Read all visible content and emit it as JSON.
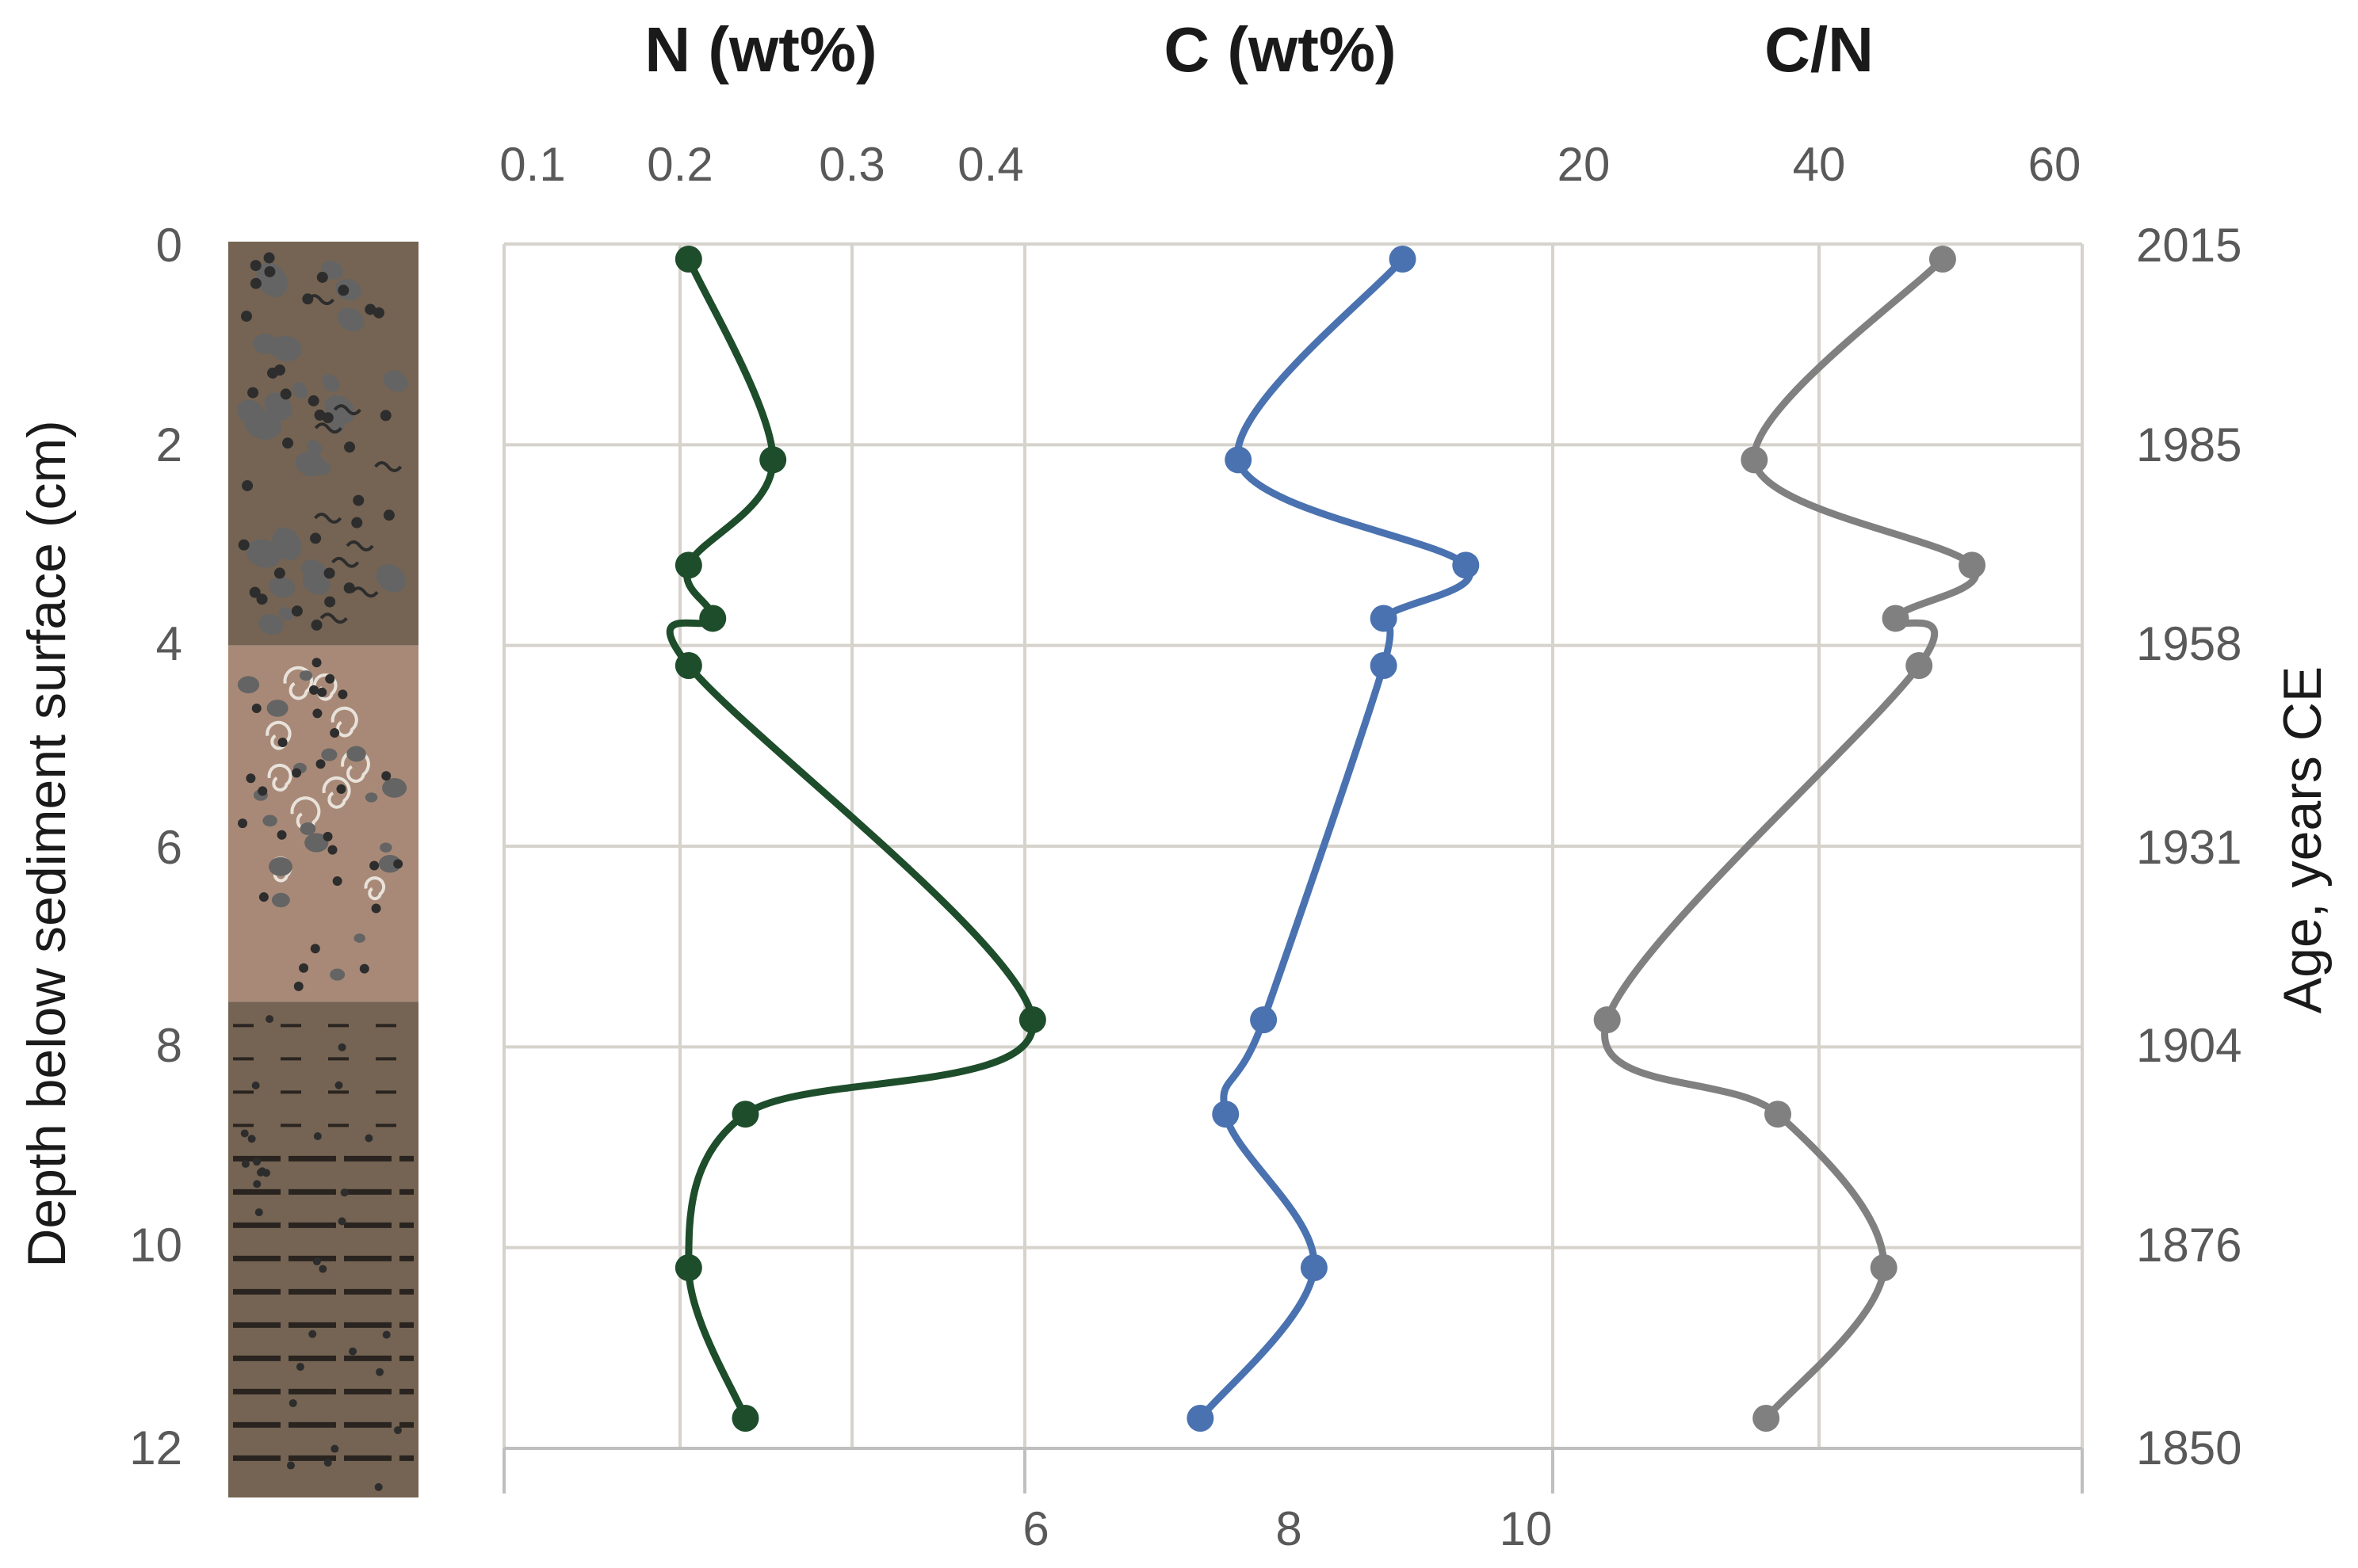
{
  "chart_data": [
    {
      "type": "line",
      "title": "N (wt%)",
      "series": [
        {
          "name": "",
          "color": "#1e4d2b",
          "x": [
            0.205,
            0.254,
            0.205,
            0.219,
            0.205,
            0.405,
            0.238,
            0.205,
            0.238
          ],
          "y": [
            0.15,
            2.15,
            3.2,
            3.73,
            4.2,
            7.73,
            8.67,
            10.2,
            11.7
          ]
        }
      ],
      "xticks": [
        "0.1",
        "0.2",
        "0.3",
        "0.4"
      ],
      "ylabel": "Depth below sediment surface (cm)",
      "yticks": [
        "0",
        "2",
        "4",
        "6",
        "8",
        "10",
        "12"
      ],
      "ylim": [
        0,
        12
      ],
      "grid": true
    },
    {
      "type": "line",
      "title": "C (wt%)",
      "series": [
        {
          "name": "",
          "color": "#4a72b0",
          "x": [
            8.9,
            7.6,
            9.4,
            8.75,
            8.75,
            7.8,
            7.5,
            8.2,
            7.3
          ],
          "y": [
            0.15,
            2.15,
            3.2,
            3.73,
            4.2,
            7.73,
            8.67,
            10.2,
            11.7
          ]
        }
      ],
      "xticks": [
        "6",
        "8",
        "10"
      ],
      "grid": true
    },
    {
      "type": "line",
      "title": "C/N",
      "series": [
        {
          "name": "",
          "color": "#808080",
          "x": [
            50.5,
            34.5,
            53,
            46.5,
            48.5,
            22,
            36.5,
            45.5,
            35.5
          ],
          "y": [
            0.15,
            2.15,
            3.2,
            3.73,
            4.2,
            7.73,
            8.67,
            10.2,
            11.7
          ]
        }
      ],
      "xticks": [
        "20",
        "40",
        "60"
      ],
      "y2label": "Age, years CE",
      "y2ticks": [
        "2015",
        "1985",
        "1958",
        "1931",
        "1904",
        "1876",
        "1850"
      ],
      "grid": true
    }
  ],
  "lithology": {
    "colors": {
      "dark": "#756453",
      "light": "#a88977",
      "speck": "#2d2d2d",
      "clast": "#646464",
      "shell": "#e8e2da"
    }
  }
}
